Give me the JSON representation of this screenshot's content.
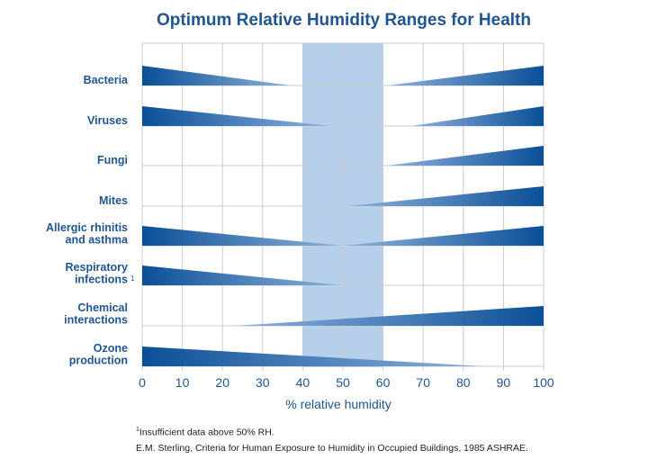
{
  "chart_data": {
    "type": "area",
    "title": "Optimum Relative Humidity Ranges for Health",
    "xlabel": "% relative humidity",
    "ylabel": "",
    "xlim": [
      0,
      100
    ],
    "x_ticks": [
      "0",
      "10",
      "20",
      "30",
      "40",
      "50",
      "60",
      "70",
      "80",
      "90",
      "100"
    ],
    "optimum_zone": [
      40,
      60
    ],
    "grid": true,
    "categories": [
      {
        "label_lines": [
          "Bacteria"
        ],
        "footnote_mark": "",
        "wedges": [
          {
            "from": 0,
            "to": 37,
            "peak": "left"
          },
          {
            "from": 61,
            "to": 100,
            "peak": "right"
          }
        ]
      },
      {
        "label_lines": [
          "Viruses"
        ],
        "footnote_mark": "",
        "wedges": [
          {
            "from": 0,
            "to": 47,
            "peak": "left"
          },
          {
            "from": 67,
            "to": 100,
            "peak": "right"
          }
        ]
      },
      {
        "label_lines": [
          "Fungi"
        ],
        "footnote_mark": "",
        "wedges": [
          {
            "from": 61,
            "to": 100,
            "peak": "right"
          }
        ]
      },
      {
        "label_lines": [
          "Mites"
        ],
        "footnote_mark": "",
        "wedges": [
          {
            "from": 51,
            "to": 100,
            "peak": "right"
          }
        ]
      },
      {
        "label_lines": [
          "Allergic rhinitis",
          "and asthma"
        ],
        "footnote_mark": "",
        "wedges": [
          {
            "from": 0,
            "to": 50,
            "peak": "left"
          },
          {
            "from": 50,
            "to": 100,
            "peak": "right"
          }
        ]
      },
      {
        "label_lines": [
          "Respiratory",
          "infections"
        ],
        "footnote_mark": "1",
        "wedges": [
          {
            "from": 0,
            "to": 50,
            "peak": "left"
          }
        ]
      },
      {
        "label_lines": [
          "Chemical",
          "interactions"
        ],
        "footnote_mark": "",
        "wedges": [
          {
            "from": 23,
            "to": 100,
            "peak": "right"
          }
        ]
      },
      {
        "label_lines": [
          "Ozone",
          "production"
        ],
        "footnote_mark": "",
        "wedges": [
          {
            "from": 0,
            "to": 85,
            "peak": "left"
          }
        ]
      }
    ]
  },
  "footnotes": {
    "note1_mark": "1",
    "note1_text": "Insufficient data above 50% RH.",
    "source": "E.M. Sterling, Criteria for Human Exposure to Humidity in Occupied Buildings, 1985 ASHRAE."
  },
  "colors": {
    "dark_blue": "#0a4f97",
    "light_blue": "#8fb2dd",
    "zone": "#b6cfeb",
    "grid": "#cccccc",
    "text": "#1f5591"
  }
}
